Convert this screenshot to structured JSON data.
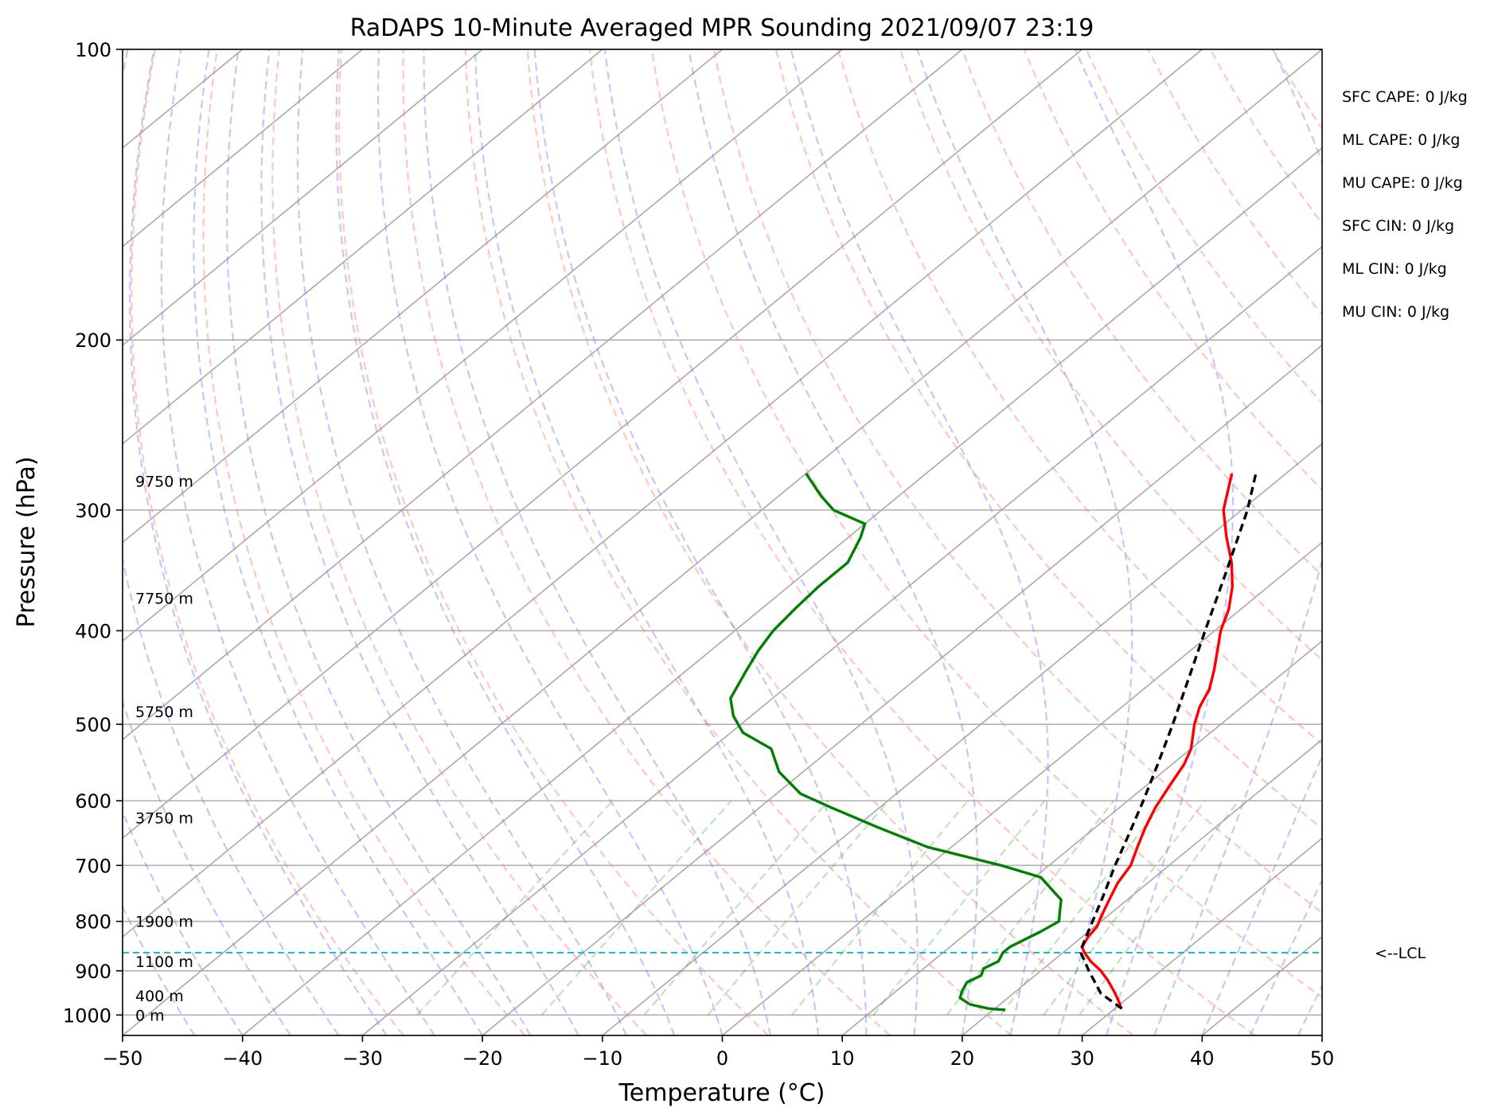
{
  "chart_data": {
    "type": "line",
    "title": "RaDAPS 10-Minute Averaged MPR Sounding 2021/09/07 23:19",
    "xlabel": "Temperature (°C)",
    "ylabel": "Pressure (hPa)",
    "xlim": [
      -50,
      50
    ],
    "ylim": [
      1050,
      100
    ],
    "y_scale": "log",
    "grid": true,
    "x_ticks": [
      -50,
      -40,
      -30,
      -20,
      -10,
      0,
      10,
      20,
      30,
      40,
      50
    ],
    "x_tick_labels": [
      "−50",
      "−40",
      "−30",
      "−20",
      "−10",
      "0",
      "10",
      "20",
      "30",
      "40",
      "50"
    ],
    "y_ticks": [
      100,
      200,
      300,
      400,
      500,
      600,
      700,
      800,
      900,
      1000
    ],
    "y_tick_labels": [
      "100",
      "200",
      "300",
      "400",
      "500",
      "600",
      "700",
      "800",
      "900",
      "1000"
    ],
    "height_labels": [
      {
        "p": 280,
        "text": "9750 m"
      },
      {
        "p": 370,
        "text": "7750 m"
      },
      {
        "p": 485,
        "text": "5750 m"
      },
      {
        "p": 625,
        "text": "3750 m"
      },
      {
        "p": 800,
        "text": "1900 m"
      },
      {
        "p": 880,
        "text": "1100 m"
      },
      {
        "p": 955,
        "text": "400 m"
      },
      {
        "p": 1000,
        "text": "0 m"
      }
    ],
    "indices": [
      "SFC CAPE: 0 J/kg",
      "ML CAPE: 0 J/kg",
      "MU CAPE: 0 J/kg",
      "SFC CIN: 0 J/kg",
      "ML CIN: 0 J/kg",
      "MU CIN: 0 J/kg"
    ],
    "lcl": {
      "p": 862,
      "label": "<--LCL"
    },
    "series": [
      {
        "kind": "temperature",
        "color": "#ff0000",
        "p": [
          985,
          975,
          950,
          920,
          900,
          880,
          862,
          850,
          830,
          810,
          790,
          760,
          730,
          700,
          670,
          640,
          610,
          580,
          550,
          530,
          500,
          480,
          460,
          440,
          420,
          400,
          380,
          360,
          340,
          320,
          300,
          275
        ],
        "t": [
          30.5,
          30.0,
          28.5,
          26.5,
          25.0,
          23.2,
          21.8,
          21.0,
          20.5,
          20.2,
          19.5,
          18.5,
          17.5,
          16.8,
          15.5,
          14.2,
          13.0,
          12.0,
          11.0,
          10.0,
          7.8,
          6.5,
          5.5,
          4.0,
          2.3,
          0.5,
          -1.0,
          -3.0,
          -5.5,
          -8.5,
          -11.5,
          -14.5
        ]
      },
      {
        "kind": "dewpoint",
        "color": "#008000",
        "p": [
          988,
          985,
          975,
          960,
          945,
          925,
          910,
          895,
          880,
          862,
          850,
          820,
          800,
          780,
          760,
          720,
          700,
          670,
          640,
          610,
          590,
          560,
          530,
          510,
          490,
          470,
          440,
          420,
          400,
          380,
          360,
          350,
          340,
          320,
          310,
          300,
          290,
          275
        ],
        "t": [
          21.0,
          19.5,
          17.5,
          16.0,
          15.5,
          15.0,
          15.5,
          15.0,
          15.5,
          15.0,
          15.0,
          16.0,
          16.5,
          15.5,
          14.5,
          10.5,
          6.0,
          -2.0,
          -8.0,
          -14.0,
          -18.0,
          -22.0,
          -25.0,
          -29.0,
          -31.5,
          -33.5,
          -35.0,
          -36.0,
          -36.8,
          -37.2,
          -37.5,
          -37.5,
          -37.5,
          -39.0,
          -40.0,
          -44.0,
          -46.5,
          -50.0
        ]
      },
      {
        "kind": "parcel",
        "color": "#000000",
        "p": [
          985,
          950,
          900,
          862,
          850,
          800,
          750,
          700,
          650,
          600,
          550,
          500,
          450,
          400,
          350,
          300,
          275
        ],
        "t": [
          30.6,
          27.3,
          24.0,
          21.5,
          21.0,
          19.3,
          17.5,
          15.5,
          13.5,
          11.3,
          8.8,
          6.0,
          2.8,
          -0.8,
          -4.8,
          -9.5,
          -12.5
        ]
      }
    ]
  }
}
